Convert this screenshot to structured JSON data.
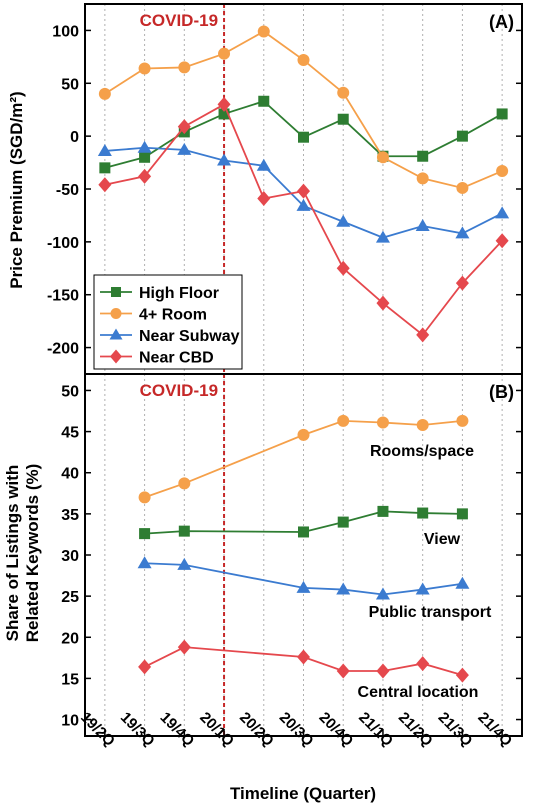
{
  "colors": {
    "high_floor": "#2e7d32",
    "rooms": "#f5a04a",
    "subway": "#3b7bd0",
    "cbd": "#e5484d",
    "covid_line": "#c62828",
    "grid": "#b0b0b0"
  },
  "x_axis": {
    "title": "Timeline (Quarter)",
    "ticks": [
      "19/2Q",
      "19/3Q",
      "19/4Q",
      "20/1Q",
      "20/2Q",
      "20/3Q",
      "20/4Q",
      "21/1Q",
      "21/2Q",
      "21/3Q",
      "21/4Q"
    ]
  },
  "chart_data": [
    {
      "type": "line",
      "panel_label": "(A)",
      "annotation": "COVID-19",
      "covid_marker_x": "20/1Q",
      "ylabel": "Price Premium (SGD/m²)",
      "ylim": [
        -225,
        125
      ],
      "yticks": [
        100,
        50,
        0,
        -50,
        -100,
        -150,
        -200
      ],
      "grid": "vertical dotted",
      "legend_position": "lower-left",
      "categories": [
        "19/2Q",
        "19/3Q",
        "19/4Q",
        "20/1Q",
        "20/2Q",
        "20/3Q",
        "20/4Q",
        "21/1Q",
        "21/2Q",
        "21/3Q",
        "21/4Q"
      ],
      "series": [
        {
          "name": "High Floor",
          "color_key": "high_floor",
          "marker": "square",
          "values": [
            -30,
            -20,
            4,
            21,
            33,
            -1,
            16,
            -19,
            -19,
            0,
            21
          ]
        },
        {
          "name": "4+ Room",
          "color_key": "rooms",
          "marker": "circle",
          "values": [
            40,
            64,
            65,
            78,
            99,
            72,
            41,
            -20,
            -40,
            -49,
            -33
          ]
        },
        {
          "name": "Near Subway",
          "color_key": "subway",
          "marker": "triangle",
          "values": [
            -14,
            -11,
            -13,
            -23,
            -28,
            -66,
            -81,
            -96,
            -85,
            -92,
            -73
          ]
        },
        {
          "name": "Near CBD",
          "color_key": "cbd",
          "marker": "diamond",
          "values": [
            -46,
            -38,
            9,
            30,
            -59,
            -52,
            -125,
            -158,
            -188,
            -139,
            -99
          ]
        }
      ]
    },
    {
      "type": "line",
      "panel_label": "(B)",
      "annotation": "COVID-19",
      "covid_marker_x": "20/1Q",
      "ylabel_lines": [
        "Share of Listings with",
        "Related Keywords (%)"
      ],
      "ylim": [
        8,
        52
      ],
      "yticks": [
        50,
        45,
        40,
        35,
        30,
        25,
        20,
        15,
        10
      ],
      "grid": "vertical dotted",
      "categories": [
        "19/2Q",
        "19/3Q",
        "19/4Q",
        "20/1Q",
        "20/2Q",
        "20/3Q",
        "20/4Q",
        "21/1Q",
        "21/2Q",
        "21/3Q",
        "21/4Q"
      ],
      "series": [
        {
          "name": "Rooms/space",
          "color_key": "rooms",
          "marker": "circle",
          "points": [
            [
              "19/3Q",
              37.0
            ],
            [
              "19/4Q",
              38.7
            ],
            [
              "20/3Q",
              44.6
            ],
            [
              "20/4Q",
              46.3
            ],
            [
              "21/1Q",
              46.1
            ],
            [
              "21/2Q",
              45.8
            ],
            [
              "21/3Q",
              46.3
            ]
          ]
        },
        {
          "name": "View",
          "color_key": "high_floor",
          "marker": "square",
          "points": [
            [
              "19/3Q",
              32.6
            ],
            [
              "19/4Q",
              32.9
            ],
            [
              "20/3Q",
              32.8
            ],
            [
              "20/4Q",
              34.0
            ],
            [
              "21/1Q",
              35.3
            ],
            [
              "21/2Q",
              35.1
            ],
            [
              "21/3Q",
              35.0
            ]
          ]
        },
        {
          "name": "Public transport",
          "color_key": "subway",
          "marker": "triangle",
          "points": [
            [
              "19/3Q",
              29.0
            ],
            [
              "19/4Q",
              28.8
            ],
            [
              "20/3Q",
              26.0
            ],
            [
              "20/4Q",
              25.8
            ],
            [
              "21/1Q",
              25.2
            ],
            [
              "21/2Q",
              25.8
            ],
            [
              "21/3Q",
              26.5
            ]
          ]
        },
        {
          "name": "Central location",
          "color_key": "cbd",
          "marker": "diamond",
          "points": [
            [
              "19/3Q",
              16.4
            ],
            [
              "19/4Q",
              18.8
            ],
            [
              "20/3Q",
              17.6
            ],
            [
              "20/4Q",
              15.9
            ],
            [
              "21/1Q",
              15.9
            ],
            [
              "21/2Q",
              16.8
            ],
            [
              "21/3Q",
              15.4
            ]
          ]
        }
      ]
    }
  ]
}
